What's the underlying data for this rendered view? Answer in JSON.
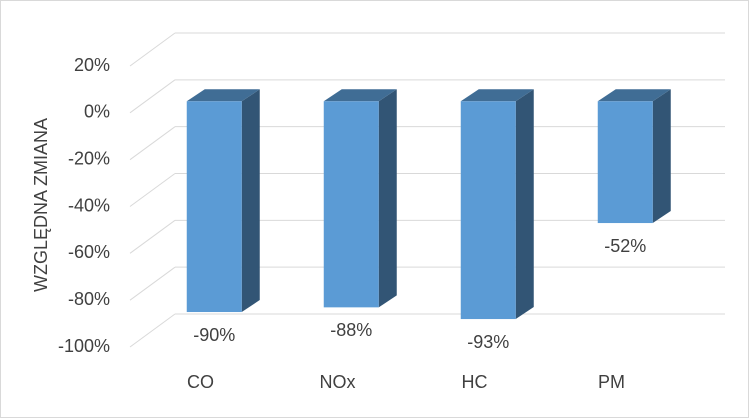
{
  "chart_data": {
    "type": "bar3d",
    "y_label": "WZGLĘDNA ZMIANA",
    "categories": [
      "CO",
      "NOx",
      "HC",
      "PM"
    ],
    "values": [
      -90,
      -88,
      -93,
      -52
    ],
    "value_labels": [
      "-90%",
      "-88%",
      "-93%",
      "-52%"
    ],
    "color": "#5b9bd5",
    "ylim": [
      -100,
      20
    ],
    "yticks": [
      {
        "value": 20,
        "label": "20%"
      },
      {
        "value": 0,
        "label": "0%"
      },
      {
        "value": -20,
        "label": "-20%"
      },
      {
        "value": -40,
        "label": "-40%"
      },
      {
        "value": -60,
        "label": "-60%"
      },
      {
        "value": -80,
        "label": "-80%"
      },
      {
        "value": -100,
        "label": "-100%"
      }
    ],
    "grid": true
  }
}
